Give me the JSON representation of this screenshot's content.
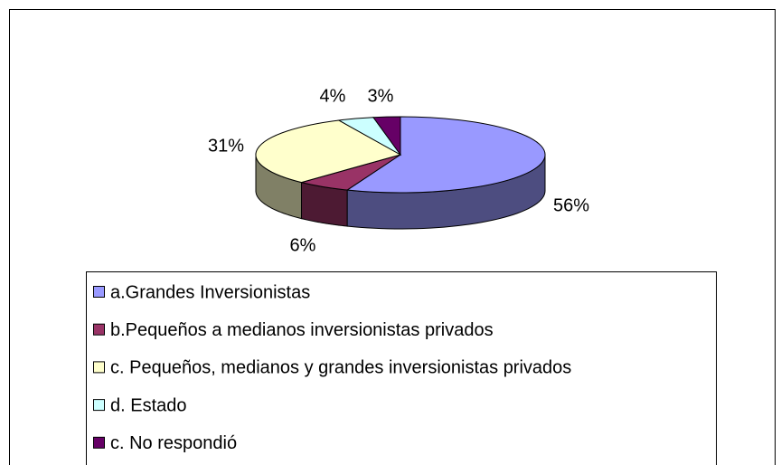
{
  "chart_data": {
    "type": "pie3d",
    "categories": [
      "a.Grandes Inversionistas",
      "b.Pequeños a medianos inversionistas privados",
      "c. Pequeños, medianos y grandes inversionistas privados",
      "d. Estado",
      "c. No respondió"
    ],
    "values": [
      56,
      6,
      31,
      4,
      3
    ],
    "value_labels": [
      "56%",
      "6%",
      "31%",
      "4%",
      "3%"
    ],
    "colors": [
      "#9999ff",
      "#993366",
      "#ffffcc",
      "#ccffff",
      "#660066"
    ],
    "legend": "bottom"
  }
}
